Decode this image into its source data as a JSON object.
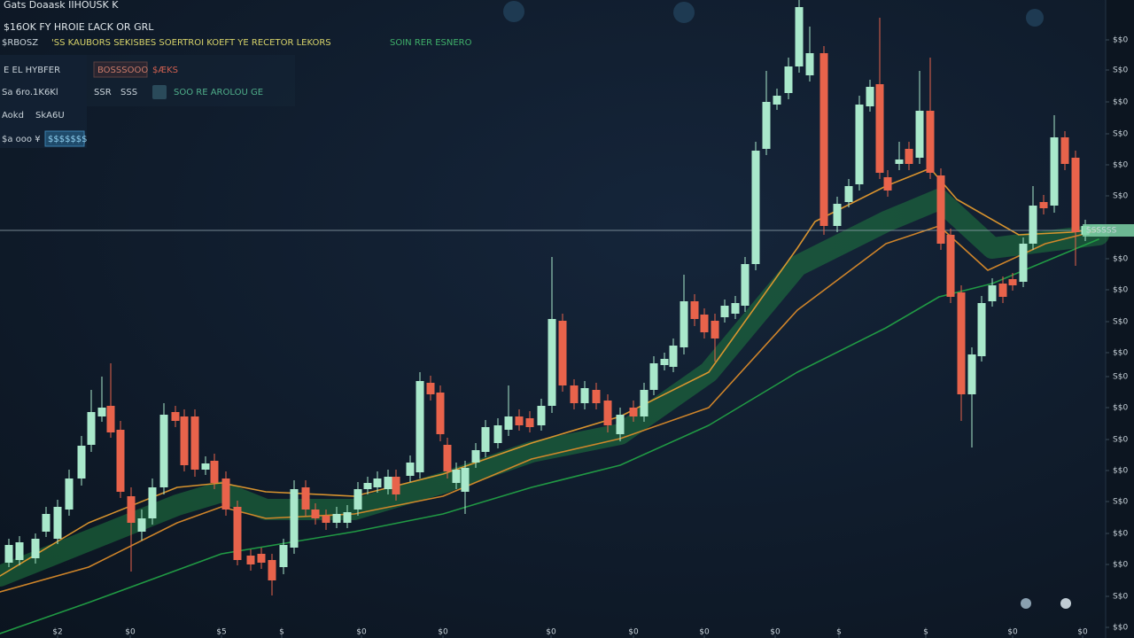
{
  "chart_data": {
    "type": "candlestick",
    "title": "Gats Doaask IIHOUSK  K",
    "subtitle": "$16OK   FY HROIE   ĽACK   OR GRL",
    "annotations": [
      "$RBOSZ",
      "'SS KAUBORS SEKISBES SOERTROI KOEFT YE RECETOR LEKORS",
      "SOIN RER ESNERO",
      "E EL HYBFER",
      "BOSSSOOO",
      "$ÆKS",
      "Sa 6ro.1K6Kl",
      "SSR",
      "SSS",
      "SOO RE  AROLOU GE",
      "Aokd",
      "SkA6U",
      "$a ooo ¥",
      "$$$$$$$"
    ],
    "x": [
      10,
      22,
      40,
      52,
      65,
      78,
      92,
      103,
      115,
      125,
      136,
      148,
      160,
      172,
      185,
      198,
      208,
      220,
      232,
      242,
      255,
      268,
      283,
      295,
      307,
      320,
      332,
      345,
      356,
      368,
      380,
      392,
      404,
      415,
      426,
      438,
      447,
      463,
      474,
      486,
      497,
      505,
      515,
      525,
      537,
      548,
      562,
      574,
      586,
      598,
      611,
      623,
      635,
      648,
      660,
      673,
      686,
      700,
      715,
      727,
      738,
      750,
      760,
      772,
      784,
      795,
      807,
      818,
      830,
      841,
      853,
      865,
      877,
      890,
      902,
      914,
      930,
      945,
      958,
      970,
      982,
      993,
      1002,
      1015,
      1026,
      1038,
      1050,
      1062,
      1073,
      1085,
      1097,
      1108,
      1120,
      1132,
      1143,
      1155,
      1166,
      1178,
      1190,
      1202,
      1214,
      1225
    ],
    "open": [
      85,
      88,
      90,
      120,
      112,
      145,
      180,
      218,
      250,
      262,
      235,
      160,
      120,
      135,
      170,
      255,
      250,
      250,
      190,
      200,
      180,
      148,
      93,
      95,
      88,
      80,
      102,
      170,
      145,
      138,
      130,
      130,
      145,
      168,
      170,
      168,
      182,
      183,
      187,
      288,
      277,
      218,
      175,
      165,
      198,
      210,
      220,
      235,
      250,
      248,
      240,
      262,
      358,
      285,
      265,
      280,
      268,
      230,
      260,
      250,
      280,
      308,
      306,
      328,
      380,
      365,
      358,
      362,
      366,
      375,
      422,
      552,
      602,
      615,
      645,
      635,
      660,
      465,
      492,
      512,
      600,
      625,
      520,
      535,
      552,
      542,
      595,
      522,
      455,
      390,
      275,
      318,
      380,
      400,
      405,
      402,
      445,
      492,
      488,
      565,
      542,
      455
    ],
    "high": [
      112,
      115,
      118,
      148,
      156,
      190,
      228,
      280,
      295,
      310,
      245,
      170,
      145,
      180,
      265,
      262,
      258,
      258,
      205,
      208,
      188,
      155,
      100,
      102,
      95,
      112,
      178,
      178,
      152,
      145,
      148,
      150,
      176,
      182,
      188,
      190,
      190,
      206,
      300,
      296,
      285,
      226,
      198,
      200,
      220,
      246,
      248,
      285,
      258,
      256,
      270,
      430,
      366,
      292,
      290,
      288,
      275,
      260,
      268,
      288,
      318,
      322,
      338,
      410,
      388,
      372,
      366,
      382,
      386,
      430,
      560,
      640,
      620,
      655,
      720,
      690,
      668,
      498,
      518,
      612,
      630,
      700,
      528,
      560,
      560,
      640,
      655,
      530,
      462,
      398,
      328,
      386,
      406,
      408,
      412,
      452,
      510,
      500,
      590,
      572,
      550,
      472
    ],
    "low": [
      80,
      82,
      84,
      114,
      106,
      138,
      172,
      210,
      244,
      226,
      158,
      75,
      110,
      128,
      162,
      238,
      188,
      182,
      184,
      168,
      138,
      82,
      76,
      78,
      48,
      72,
      95,
      138,
      128,
      122,
      124,
      124,
      138,
      162,
      164,
      162,
      155,
      176,
      180,
      268,
      222,
      180,
      168,
      140,
      192,
      204,
      214,
      228,
      234,
      232,
      234,
      254,
      278,
      258,
      258,
      258,
      232,
      222,
      244,
      244,
      274,
      302,
      300,
      320,
      352,
      338,
      312,
      356,
      360,
      368,
      415,
      545,
      596,
      608,
      638,
      628,
      455,
      458,
      486,
      505,
      594,
      518,
      498,
      528,
      528,
      535,
      518,
      438,
      378,
      245,
      215,
      312,
      374,
      378,
      392,
      396,
      438,
      478,
      480,
      528,
      420,
      448
    ],
    "close": [
      105,
      108,
      112,
      140,
      148,
      180,
      217,
      255,
      260,
      232,
      165,
      130,
      135,
      170,
      252,
      245,
      195,
      190,
      197,
      175,
      145,
      88,
      83,
      85,
      65,
      105,
      168,
      145,
      135,
      130,
      140,
      142,
      168,
      175,
      180,
      182,
      162,
      198,
      290,
      275,
      230,
      188,
      190,
      192,
      212,
      238,
      240,
      250,
      240,
      238,
      262,
      360,
      285,
      265,
      282,
      265,
      240,
      252,
      250,
      280,
      310,
      315,
      330,
      380,
      360,
      345,
      338,
      375,
      378,
      422,
      550,
      605,
      612,
      645,
      712,
      660,
      465,
      490,
      510,
      602,
      622,
      525,
      505,
      540,
      535,
      595,
      525,
      445,
      385,
      275,
      320,
      378,
      398,
      385,
      398,
      445,
      488,
      485,
      565,
      535,
      458,
      465
    ],
    "up_color": "#a9e8cb",
    "down_color": "#e8634b",
    "lines": [
      {
        "kind": "band",
        "color": "#1f7a3f",
        "x": [
          0,
          100,
          200,
          250,
          300,
          400,
          500,
          600,
          700,
          800,
          900,
          1000,
          1060,
          1120,
          1240
        ],
        "values": [
          70,
          110,
          150,
          165,
          145,
          145,
          175,
          210,
          230,
          300,
          420,
          470,
          495,
          440,
          455
        ]
      },
      {
        "kind": "line",
        "color": "#e39a2e",
        "x": [
          0,
          100,
          200,
          250,
          300,
          400,
          500,
          600,
          700,
          800,
          900,
          920,
          1000,
          1050,
          1080,
          1150,
          1210,
          1240
        ],
        "values": [
          70,
          130,
          170,
          175,
          165,
          160,
          185,
          220,
          250,
          300,
          440,
          470,
          510,
          530,
          495,
          455,
          458,
          462
        ]
      },
      {
        "kind": "line",
        "color": "#d98a2a",
        "x": [
          0,
          100,
          200,
          250,
          300,
          400,
          500,
          600,
          700,
          800,
          900,
          1000,
          1060,
          1115,
          1180,
          1240
        ],
        "values": [
          52,
          80,
          130,
          148,
          135,
          140,
          160,
          202,
          225,
          260,
          370,
          445,
          465,
          415,
          445,
          460
        ]
      },
      {
        "kind": "line",
        "color": "#22a046",
        "x": [
          0,
          100,
          250,
          400,
          500,
          600,
          700,
          800,
          900,
          1000,
          1060,
          1120,
          1240
        ],
        "values": [
          5,
          40,
          95,
          120,
          140,
          170,
          195,
          240,
          300,
          350,
          385,
          400,
          450
        ]
      }
    ],
    "current_price": {
      "value": 460,
      "label": "SSSSSS"
    },
    "xlim": [
      0,
      1248
    ],
    "ylim": [
      0,
      720
    ],
    "xticks": [
      {
        "value": 65,
        "label": "$2"
      },
      {
        "value": 147,
        "label": "$0"
      },
      {
        "value": 250,
        "label": "$5"
      },
      {
        "value": 318,
        "label": "$"
      },
      {
        "value": 408,
        "label": "$0"
      },
      {
        "value": 500,
        "label": "$0"
      },
      {
        "value": 622,
        "label": "$0"
      },
      {
        "value": 715,
        "label": "$0"
      },
      {
        "value": 795,
        "label": "$0"
      },
      {
        "value": 875,
        "label": "$0"
      },
      {
        "value": 947,
        "label": "$"
      },
      {
        "value": 1045,
        "label": "$"
      },
      {
        "value": 1143,
        "label": "$0"
      },
      {
        "value": 1222,
        "label": "$0"
      }
    ],
    "yticks": [
      {
        "value": 675,
        "label": "$$0"
      },
      {
        "value": 641,
        "label": "S$0"
      },
      {
        "value": 605,
        "label": "$$0"
      },
      {
        "value": 569,
        "label": "S$0"
      },
      {
        "value": 534,
        "label": "$$0"
      },
      {
        "value": 499,
        "label": "S$0"
      },
      {
        "value": 428,
        "label": "$$0"
      },
      {
        "value": 393,
        "label": "$$0"
      },
      {
        "value": 357,
        "label": "S$0"
      },
      {
        "value": 322,
        "label": "$$0"
      },
      {
        "value": 295,
        "label": "S$0"
      },
      {
        "value": 260,
        "label": "$$0"
      },
      {
        "value": 224,
        "label": "S$0"
      },
      {
        "value": 189,
        "label": "$$0"
      },
      {
        "value": 154,
        "label": "S$0"
      },
      {
        "value": 118,
        "label": "$$0"
      },
      {
        "value": 83,
        "label": "$$0"
      },
      {
        "value": 47,
        "label": "S$0"
      },
      {
        "value": 12,
        "label": "$$0"
      }
    ]
  }
}
